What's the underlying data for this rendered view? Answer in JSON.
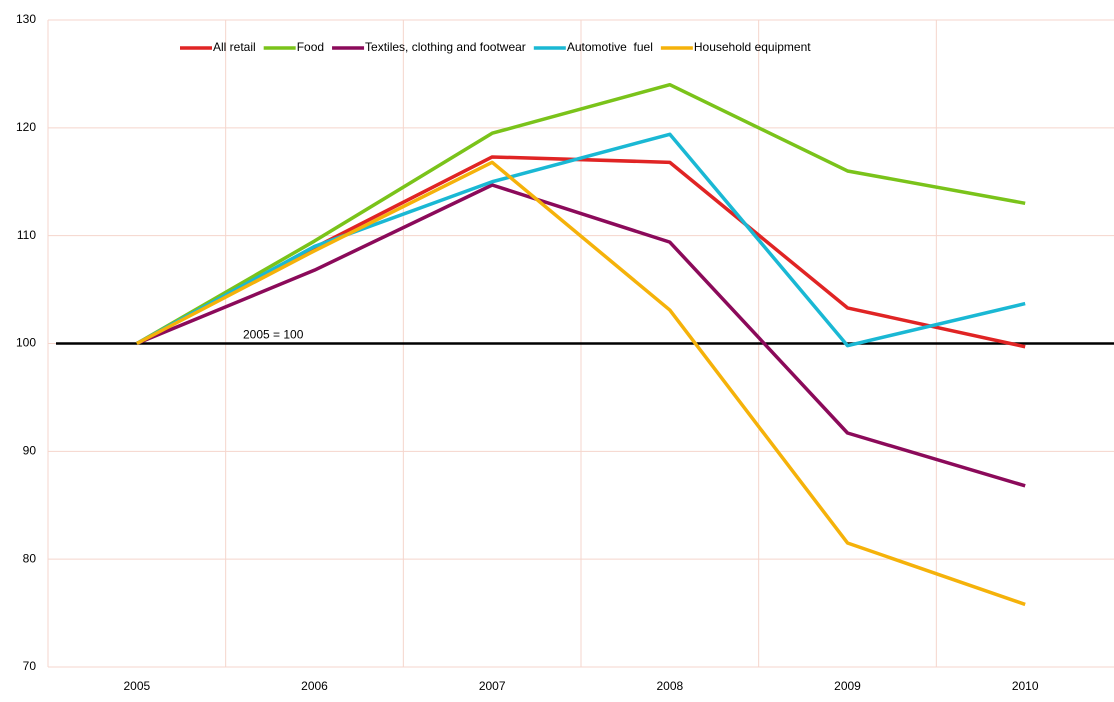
{
  "chart_data": {
    "type": "line",
    "categories": [
      "2005",
      "2006",
      "2007",
      "2008",
      "2009",
      "2010"
    ],
    "series": [
      {
        "name": "All retail",
        "color": "#e02424",
        "values": [
          100,
          108.9,
          117.3,
          116.8,
          103.3,
          99.7
        ]
      },
      {
        "name": "Food",
        "color": "#7ac31a",
        "values": [
          100,
          109.5,
          119.5,
          124,
          116,
          113
        ]
      },
      {
        "name": "Textiles, clothing and footwear",
        "color": "#8b0a5a",
        "values": [
          100,
          106.8,
          114.7,
          109.4,
          91.7,
          86.8
        ]
      },
      {
        "name": "Automotive  fuel",
        "color": "#1ab8d4",
        "values": [
          100,
          109,
          115,
          119.4,
          99.8,
          103.7
        ]
      },
      {
        "name": "Household equipment",
        "color": "#f5b20a",
        "values": [
          100,
          108.6,
          116.8,
          103.1,
          81.5,
          75.8
        ]
      }
    ],
    "reference_line": {
      "value": 100,
      "label": "2005 = 100",
      "color": "#000000"
    },
    "ylim": [
      70,
      130
    ],
    "yticks": [
      70,
      80,
      90,
      100,
      110,
      120,
      130
    ],
    "grid": true,
    "legend": "top"
  }
}
